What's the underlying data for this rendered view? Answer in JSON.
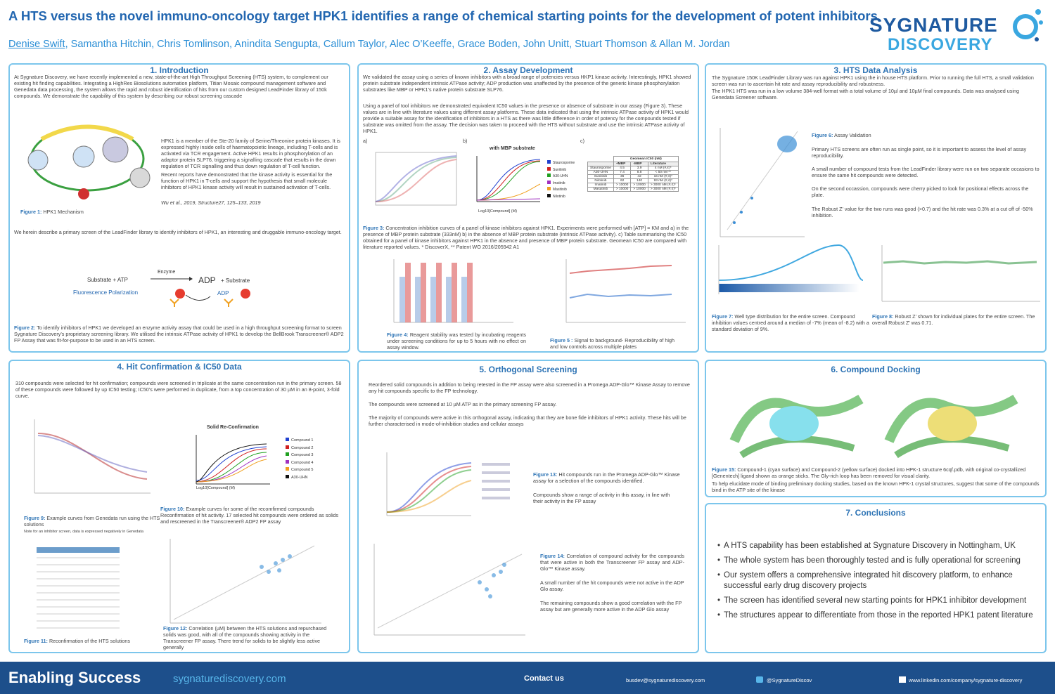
{
  "header": {
    "title": "A HTS versus the novel immuno-oncology target HPK1 identifies a range of chemical starting points for the development of potent inhibitors",
    "first_author": "Denise Swift",
    "other_authors": ", Samantha Hitchin, Chris Tomlinson, Anindita Sengupta, Callum Taylor, Alec O’Keeffe, Grace Boden, John Unitt, Stuart Thomson & Allan M. Jordan",
    "logo_top": "SYGNATURE",
    "logo_bottom": "DISCOVERY"
  },
  "introduction": {
    "title": "1. Introduction",
    "p1": "At Sygnature Discovery, we have recently implemented a new, state-of-the-art High Throughput Screening (HTS) system, to complement our existing hit finding capabilities. Integrating a HighRes Biosolutions automation platform, Titian Mosaic compound management software and Genedata data processing, the system allows the rapid and robust identification of hits from our custom designed LeadFinder library of 150k compounds. We demonstrate the capability of this system by describing our robust screening cascade",
    "p2": "HPK1 is a member of the Ste-20 family of Serine/Threonine protein kinases. It is expressed highly inside cells of haematopoietic lineage, including T-cells and is activated via TCR engagement. Active HPK1 results in phosphorylation of an adaptor protein SLP76, triggering a signalling cascade that results in the down regulation of TCR signalling and thus down regulation of T-cell function.",
    "p3": "Recent reports have demonstrated that the kinase activity is essential for the function of HPK1 in T-cells and support the hypothesis that small molecule inhibitors of HPK1 kinase activity will result in sustained activation of T-cells.",
    "citation": "Wu et al., 2019, Structure27, 125–133, 2019",
    "fig1_label": "Figure 1:",
    "fig1_text": " HPK1 Mechanism",
    "p4": "We herein describe a primary screen of the LeadFinder library to identify inhibitors of HPK1, an interesting and druggable immuno-oncology target.",
    "scheme": {
      "substrate_atp": "Substrate + ATP",
      "enzyme": "Enzyme",
      "adp": "ADP",
      "plus_substrate": "+ Substrate",
      "fp": "Fluorescence Polarization",
      "adp_tag": "ADP"
    },
    "fig2_label": "Figure 2:",
    "fig2_text": " To identify inhibitors of HPK1 we developed an enzyme activity assay that could be used in a high throughput screening format to screen Sygnature Discovery’s proprietary screening library. We utilised the intrinsic ATPase activity of HPK1 to develop the BellBrook Transcreener® ADP2 FP Assay that was fit-for-purpose to be used in an HTS screen."
  },
  "assay": {
    "title": "2. Assay Development",
    "p1": "We validated the assay using a series of known inhibitors with a broad range of potencies versus HKP1 kinase activity. Interestingly, HPK1 showed protein substrate independent intrinsic ATPase activity; ADP production was unaffected by the presence of the generic kinase phosphorylation substrates like MBP or HPK1’s native protein substrate SLP76.",
    "p2": "Using a panel of tool inhibitors we demonstrated equivalent IC50 values in the presence or absence of substrate in our assay (Figure 3). These values are in line with literature values using different assay platforms. These data indicated that using the intrinsic ATPase activity of HPK1 would provide a suitable assay for the identification of inhibitors in a HTS as there was little difference in order of potency for the compounds tested if substrate was omitted from the assay. The decision was taken to proceed with the HTS without substrate and use the intrinsic ATPase activity of HPK1.",
    "panel_a": "a)",
    "panel_b": "b)",
    "panel_c": "c)",
    "chart_title": "with MBP substrate",
    "y_label": "% HPK1 Inhibition",
    "x_label": "Log10[Compound] (M)",
    "legend": [
      "Staurosporine",
      "Sunitinib",
      "A30-UHN",
      "Imatinib",
      "Masitinib",
      "Nilotinib"
    ],
    "table": {
      "group_header": "Geomean IC50 (nM)",
      "columns": [
        "",
        "+MBP",
        "-MBP",
        "Literature"
      ],
      "rows": [
        [
          "Staurosporine",
          "4.5",
          "3.9",
          "4 nM (#,¢)*"
        ],
        [
          "A30-UHN",
          "7.4",
          "8.8",
          "< 50 nM **"
        ],
        [
          "Sunitinib",
          "36",
          "42",
          "16 nM (#,¢)*"
        ],
        [
          "Nilotinib",
          "62",
          "140",
          "93 nM (#,¢)*"
        ],
        [
          "Imatinib",
          "> 10000",
          "> 10000",
          "> 3000 nM (#,¢)*"
        ],
        [
          "Masatinib",
          "> 10000",
          "> 10000",
          "> 3000 nM (#,¢)*"
        ]
      ]
    },
    "fig3_label": "Figure 3:",
    "fig3_text": " Concentration inhibition curves of a panel of kinase inhibitors against HPK1. Experiments were performed with [ATP] = KM and a) in the presence of MBP protein substrate (333nM) b) in the absence of MBP protein substrate (intrinsic ATPase activity). c) Table summarising the IC50 obtained for a panel of kinase inhibitors against HPK1 in the absence and presence of MBP protein substrate. Geomean IC50 are compared with literature reported values. * DiscoverX, ** Patent WO 2016/205942 A1",
    "fig4_label": "Figure 4:",
    "fig4_text": " Reagent stability was tested by incubating reagents under screening conditions for up to 5 hours with no effect on assay window.",
    "fig5_label": "Figure 5 :",
    "fig5_text": " Signal to background- Reproducibility of high and low controls across multiple plates"
  },
  "hts": {
    "title": "3. HTS Data Analysis",
    "p1": "The Sygnature 150K LeadFinder Library was run against HPK1 using the in house HTS platform. Prior to running the full HTS, a small validation screen was run to ascertain hit rate and assay reproducibility and robustness.",
    "p2": "The HPK1 HTS was run in a low volume 384-well format with a total volume of 10µl and 10µM final compounds. Data was analysed using Genedata Screener software.",
    "fig6_label": "Figure 6:",
    "fig6_text": " Assay Validation",
    "p3": "Primary HTS screens are often run as single point, so it is important to assess the level of assay reproducibility.",
    "p4": "A small number of compound tests from the LeadFinder library were run on two separate occasions to ensure the same hit compounds were detected.",
    "p5": "On the second occassion, compounds were cherry picked to look for positional effects across the plate.",
    "p6": "The Robust Z’ value for the two runs was good (>0.7) and the hit rate was 0.3% at a cut off of -50% inhibition.",
    "fig7_label": "Figure 7:",
    "fig7_text": " Well type distribution for the entire screen. Compound inhibition values centred around a median of -7% (mean of -8.2) with a standard deviation of 9%.",
    "fig8_label": "Figure 8:",
    "fig8_text": " Robust Z’ shown for individual plates for the entire screen. The overall Robust Z’ was 0.71."
  },
  "hit_confirmation": {
    "title": "4. Hit Confirmation & IC50 Data",
    "p1": "310 compounds were selected for hit confirmation; compounds were screened in triplicate at the same concentration run in the primary screen. 58 of these compounds were followed by up IC50 testing; IC50’s were performed in duplicate, from a top concentration of 30 µM in an 8-point, 3-fold curve.",
    "chart_title": "Solid Re-Confirmation",
    "y_label": "% Inhibition",
    "x_label": "Log10[Compound] (M)",
    "legend": [
      "Compound 1",
      "Compound 2",
      "Compound 3",
      "Compound 4",
      "Compound 5",
      "A30-UHN"
    ],
    "fig9_label": "Figure 9:",
    "fig9_text": " Example curves from Genedata run using the HTS solutions",
    "fig9_note": "Note for an inhibitor screen, data is expressed negatively in Genedata",
    "fig10_label": "Figure 10:",
    "fig10_text": " Example curves for some of the recomfirmed compounds Reconfirmation of hit activity. 17 selected hit compounds were ordered as solids and rescreened in the Transcreener® ADP2 FP assay",
    "fig11_label": "Figure 11:",
    "fig11_text": " Reconfirmation of the HTS solutions",
    "fig12_label": "Figure 12:",
    "fig12_text": " Correlation (µM) between the HTS solutions and repurchased solids was good, with all of the compounds showing activity in the Transcreener FP assay. There trend for solids to be slightly less active generally"
  },
  "orthogonal": {
    "title": "5. Orthogonal Screening",
    "p1": "Reordered solid compounds in addition to being retested in the FP assay were also screened in a Promega ADP-Glo™ Kinase Assay to remove any hit compounds specific to the FP technology.",
    "p2": "The compounds were screened at 10 µM ATP as in the primary screening FP assay.",
    "p3": "The majority of compounds were active in this orthogonal assay, indicating that they are bone fide inhibitors of HPK1 activity. These hits will be further characterised in mode-of-inhibition studies and cellular assays",
    "fig13_label": "Figure 13:",
    "fig13_text": " Hit compounds run in the Promega ADP-Glo™ Kinase assay for a selection of the compounds identified.",
    "p4": "Compounds show a range of activity in this assay, in line with their activity in the FP assay",
    "fig14_label": "Figure 14:",
    "fig14_text": " Correlation of compound activity for the compounds that were active in both the Transcreener FP assay and ADP-Glo™ Kinase assay.",
    "p5": "A small number of the hit compounds were not active in the ADP Glo assay.",
    "p6": "The remaining compounds show a good correlation with the FP assay but are generally more active in the ADP Glo assay"
  },
  "docking": {
    "title": "6. Compound Docking",
    "fig15_label": "Figure 15:",
    "fig15_text": " Compound-1 (cyan surface) and Compound-2 (yellow surface) docked into HPK-1 structure 6cqf.pdb, with original co-crystallized [Genentech] ligand shown as orange sticks. The Gly-rich loop has been removed for visual clarity.",
    "p1": "To help elucidate mode of binding preliminary docking studies, based on the known HPK-1 crystal structures, suggest that some of the compounds bind in the ATP site of the kinase"
  },
  "conclusions": {
    "title": "7. Conclusions",
    "bullets": [
      "A HTS capability has been established at Sygnature Discovery in Nottingham, UK",
      "The whole system has been thoroughly tested and is fully operational for screening",
      "Our system offers a comprehensive integrated hit discovery platform, to enhance successful early drug discovery projects",
      "The screen has identified several new starting points for HPK1 inhibitor development",
      "The structures appear to differentiate from those in the reported HPK1 patent literature"
    ]
  },
  "footer": {
    "tagline": "Enabling Success",
    "website": "sygnaturediscovery.com",
    "contact": "Contact us",
    "email": "busdev@sygnaturediscovery.com",
    "twitter": "@SygnatureDiscov",
    "linkedin": "www.linkedin.com/company/sygnature-discovery"
  }
}
